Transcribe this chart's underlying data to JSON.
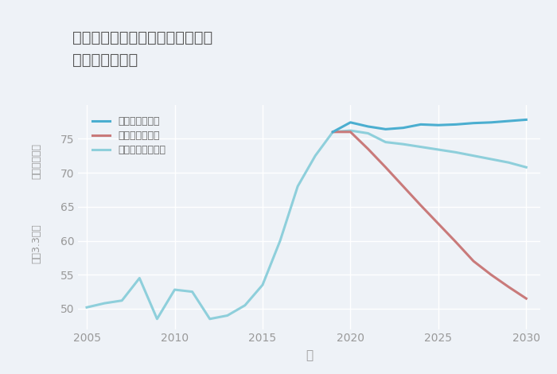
{
  "title": "愛知県名古屋市中村区元中村町の\n土地の価格推移",
  "xlabel": "年",
  "ylabel_top": "単価（万円）",
  "ylabel_bottom": "坪（3.3㎡）",
  "ylim": [
    47,
    80
  ],
  "xlim": [
    2004.5,
    2030.8
  ],
  "yticks": [
    50,
    55,
    60,
    65,
    70,
    75
  ],
  "xticks": [
    2005,
    2010,
    2015,
    2020,
    2025,
    2030
  ],
  "background_color": "#eef2f7",
  "plot_bg_color": "#eef2f7",
  "grid_color": "#ffffff",
  "good_scenario": {
    "label": "グッドシナリオ",
    "color": "#4baed0",
    "x": [
      2019,
      2020,
      2021,
      2022,
      2023,
      2024,
      2025,
      2026,
      2027,
      2028,
      2029,
      2030
    ],
    "y": [
      76.0,
      77.4,
      76.8,
      76.4,
      76.6,
      77.1,
      77.0,
      77.1,
      77.3,
      77.4,
      77.6,
      77.8
    ]
  },
  "bad_scenario": {
    "label": "バッドシナリオ",
    "color": "#c97a7a",
    "x": [
      2019,
      2020,
      2021,
      2022,
      2023,
      2024,
      2025,
      2026,
      2027,
      2028,
      2029,
      2030
    ],
    "y": [
      76.0,
      76.0,
      73.5,
      70.8,
      68.0,
      65.2,
      62.5,
      59.8,
      57.0,
      55.0,
      53.2,
      51.5
    ]
  },
  "normal_scenario": {
    "label": "ノーマルシナリオ",
    "color": "#8ecfdb",
    "x": [
      2005,
      2006,
      2007,
      2008,
      2009,
      2010,
      2011,
      2012,
      2013,
      2014,
      2015,
      2016,
      2017,
      2018,
      2019,
      2020,
      2021,
      2022,
      2023,
      2024,
      2025,
      2026,
      2027,
      2028,
      2029,
      2030
    ],
    "y": [
      50.2,
      50.8,
      51.2,
      54.5,
      48.5,
      52.8,
      52.5,
      48.5,
      49.0,
      50.5,
      53.5,
      60.0,
      68.0,
      72.5,
      76.0,
      76.2,
      75.8,
      74.5,
      74.2,
      73.8,
      73.4,
      73.0,
      72.5,
      72.0,
      71.5,
      70.8
    ]
  },
  "title_color": "#555555",
  "axis_color": "#999999",
  "tick_color": "#999999",
  "legend_text_color": "#666666"
}
